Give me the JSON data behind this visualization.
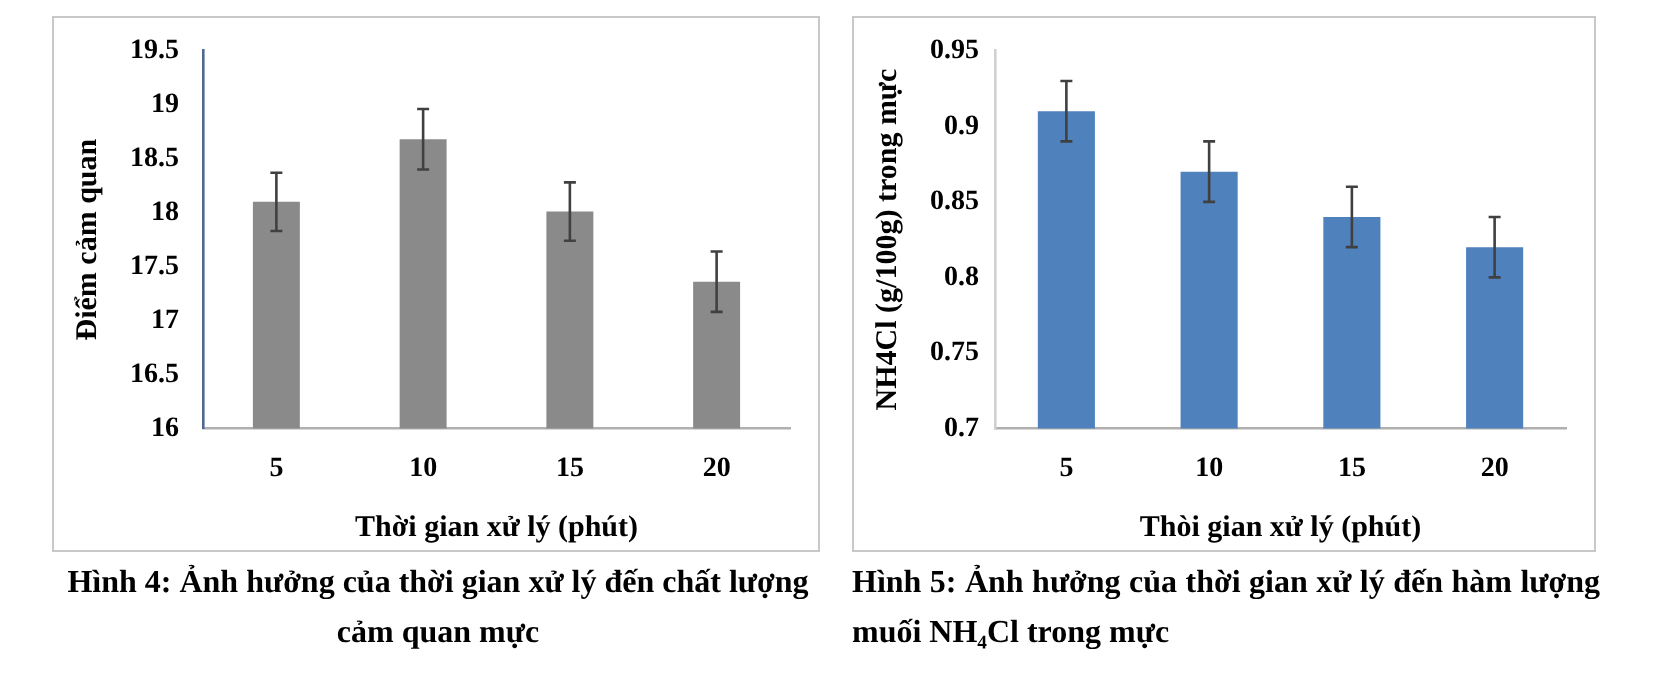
{
  "chart_data": [
    {
      "type": "bar",
      "xlabel": "Thời gian xử lý (phút)",
      "ylabel": "Điểm cảm quan",
      "categories": [
        "5",
        "10",
        "15",
        "20"
      ],
      "values": [
        18.1,
        18.68,
        18.01,
        17.36
      ],
      "errors": [
        0.27,
        0.28,
        0.27,
        0.28
      ],
      "color": "#8a8a8a",
      "ylim": [
        16,
        19.5
      ],
      "yticks": [
        16,
        16.5,
        17,
        17.5,
        18,
        18.5,
        19,
        19.5
      ],
      "grid": false,
      "legend": false,
      "annotations": [
        "Hình 4: Ảnh hưởng của thời gian xử lý đến chất lượng cảm quan mực"
      ]
    },
    {
      "type": "bar",
      "xlabel": "Thòi gian xử lý (phút)",
      "ylabel": "NH4Cl (g/100g) trong mực",
      "categories": [
        "5",
        "10",
        "15",
        "20"
      ],
      "values": [
        0.91,
        0.87,
        0.84,
        0.82
      ],
      "errors": [
        0.02,
        0.02,
        0.02,
        0.02
      ],
      "color": "#4f81bd",
      "ylim": [
        0.7,
        0.95
      ],
      "yticks": [
        0.7,
        0.75,
        0.8,
        0.85,
        0.9,
        0.95
      ],
      "grid": false,
      "legend": false,
      "annotations": [
        "Hình 5: Ảnh hưởng của thời gian xử lý đến hàm lượng muối NH₄Cl trong mực"
      ]
    }
  ]
}
